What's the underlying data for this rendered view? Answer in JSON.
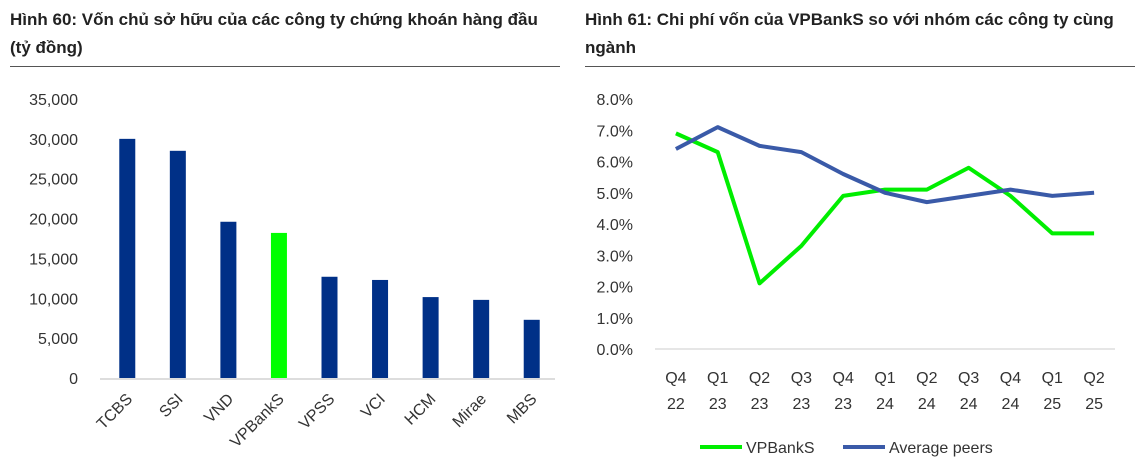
{
  "chart_data": [
    {
      "type": "bar",
      "title": "Hình 60: Vốn chủ sở hữu của các công ty chứng khoán hàng đầu (tỷ đồng)",
      "categories": [
        "TCBS",
        "SSI",
        "VND",
        "VPBankS",
        "VPSS",
        "VCI",
        "HCM",
        "Mirae",
        "MBS"
      ],
      "values": [
        30000,
        28500,
        19600,
        18200,
        12700,
        12300,
        10150,
        9800,
        7300
      ],
      "highlight": "VPBankS",
      "colors": {
        "default": "#003087",
        "highlight": "#00ff00"
      },
      "ylim": [
        0,
        35000
      ],
      "yticks": [
        "0",
        "5,000",
        "10,000",
        "15,000",
        "20,000",
        "25,000",
        "30,000",
        "35,000"
      ]
    },
    {
      "type": "line",
      "title": "Hình 61: Chi phí vốn của VPBankS so với nhóm các công ty cùng ngành",
      "categories": [
        [
          "Q4",
          "22"
        ],
        [
          "Q1",
          "23"
        ],
        [
          "Q2",
          "23"
        ],
        [
          "Q3",
          "23"
        ],
        [
          "Q4",
          "23"
        ],
        [
          "Q1",
          "24"
        ],
        [
          "Q2",
          "24"
        ],
        [
          "Q3",
          "24"
        ],
        [
          "Q4",
          "24"
        ],
        [
          "Q1",
          "25"
        ],
        [
          "Q2",
          "25"
        ]
      ],
      "series": [
        {
          "name": "VPBankS",
          "color": "#00ee00",
          "values": [
            6.9,
            6.3,
            2.1,
            3.3,
            4.9,
            5.1,
            5.1,
            5.8,
            4.9,
            3.7,
            3.7
          ]
        },
        {
          "name": "Average peers",
          "color": "#3a5aa8",
          "values": [
            6.4,
            7.1,
            6.5,
            6.3,
            5.6,
            5.0,
            4.7,
            4.9,
            5.1,
            4.9,
            5.0
          ]
        }
      ],
      "ylim": [
        0,
        8
      ],
      "yticks": [
        "0.0%",
        "1.0%",
        "2.0%",
        "3.0%",
        "4.0%",
        "5.0%",
        "6.0%",
        "7.0%",
        "8.0%"
      ],
      "legend": "bottom"
    }
  ]
}
